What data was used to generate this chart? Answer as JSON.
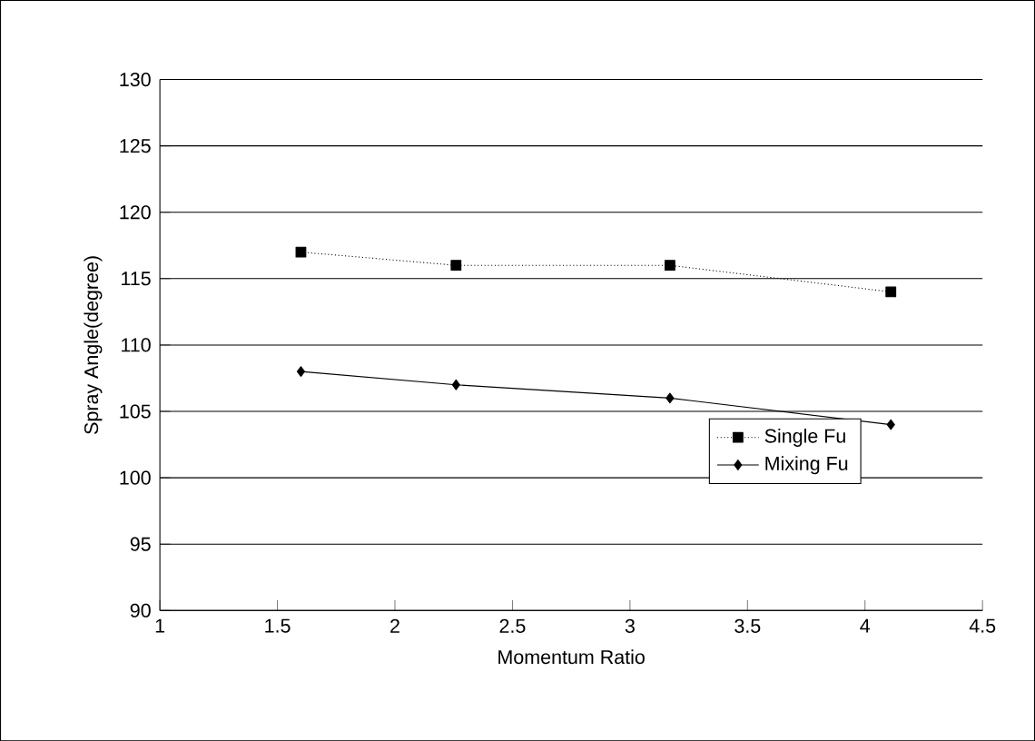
{
  "chart_data": {
    "type": "line",
    "xlabel": "Momentum Ratio",
    "ylabel": "Spray Angle(degree)",
    "x": [
      1.6,
      2.26,
      3.17,
      4.11
    ],
    "series": [
      {
        "name": "Single Fu",
        "color": "#000000",
        "values": [
          117,
          116,
          116,
          114
        ],
        "marker": "square",
        "line_style": "dotted"
      },
      {
        "name": "Mixing Fu",
        "color": "#000000",
        "values": [
          108,
          107,
          106,
          104
        ],
        "marker": "diamond",
        "line_style": "solid"
      }
    ],
    "xlim": [
      1,
      4.5
    ],
    "xticks": [
      1,
      1.5,
      2,
      2.5,
      3,
      3.5,
      4,
      4.5
    ],
    "ylim": [
      90,
      130
    ],
    "yticks": [
      90,
      95,
      100,
      105,
      110,
      115,
      120,
      125,
      130
    ],
    "grid": "y",
    "legend": "right"
  }
}
